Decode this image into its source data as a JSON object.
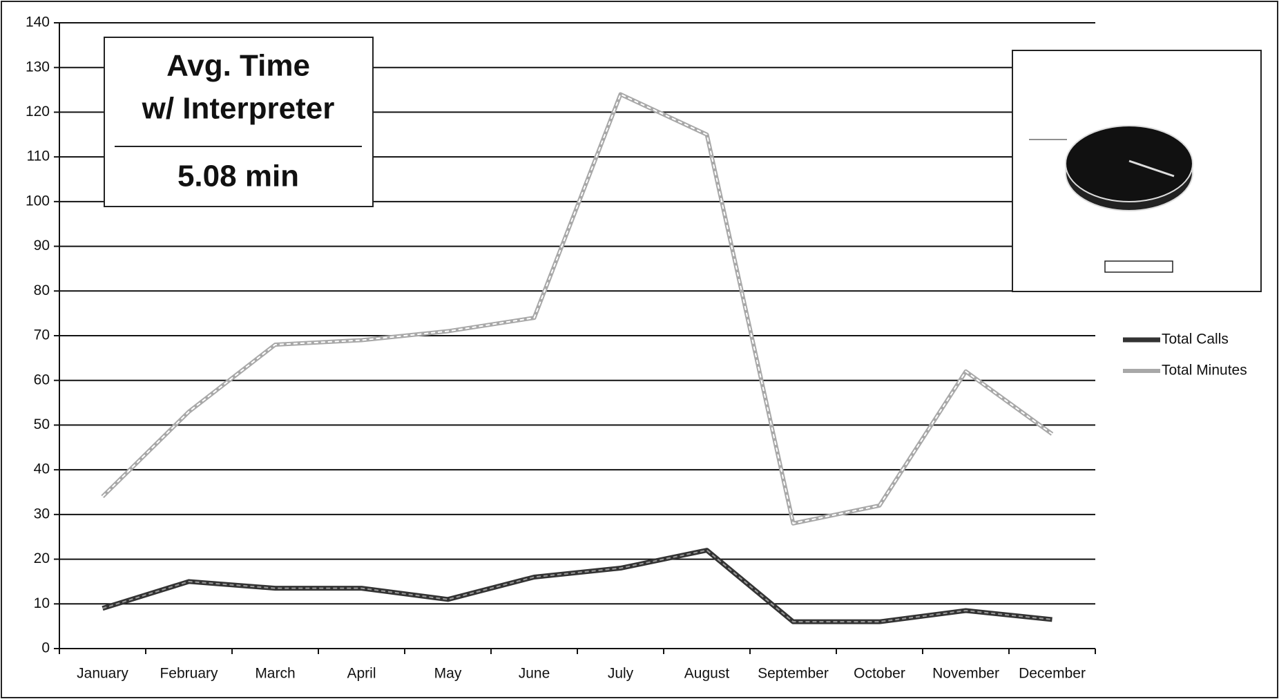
{
  "chart_data": {
    "type": "line",
    "categories": [
      "January",
      "February",
      "March",
      "April",
      "May",
      "June",
      "July",
      "August",
      "September",
      "October",
      "November",
      "December"
    ],
    "series": [
      {
        "name": "Total Calls",
        "color": "#333333",
        "values": [
          9,
          15,
          13.5,
          13.5,
          11,
          16,
          18,
          22,
          6,
          6,
          8.5,
          6.5
        ]
      },
      {
        "name": "Total Minutes",
        "color": "#a8a8a8",
        "values": [
          34,
          53,
          68,
          69,
          71,
          74,
          124,
          115,
          28,
          32,
          62,
          48
        ]
      }
    ],
    "ylim": [
      0,
      140
    ],
    "yticks": [
      0,
      10,
      20,
      30,
      40,
      50,
      60,
      70,
      80,
      90,
      100,
      110,
      120,
      130,
      140
    ],
    "grid": true,
    "legend": "right",
    "annotation": {
      "title_line1": "Avg. Time",
      "title_line2": "w/ Interpreter",
      "value": "5.08 min"
    }
  }
}
